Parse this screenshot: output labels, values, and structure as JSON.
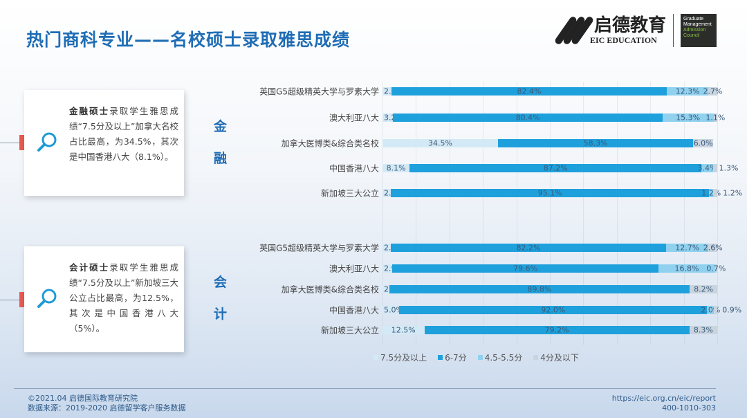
{
  "header": {
    "title": "热门商科专业——名校硕士录取雅思成绩"
  },
  "logo": {
    "cn": "启德教育",
    "en": "EIC EDUCATION",
    "gmac": [
      "Graduate",
      "Management",
      "Admission",
      "Council"
    ]
  },
  "cards": [
    {
      "bold": "金融硕士",
      "text": "录取学生雅思成绩“7.5分及以上”加拿大名校占比最高，为34.5%，其次是中国香港八大（8.1%）。"
    },
    {
      "bold": "会计硕士",
      "text": "录取学生雅思成绩“7.5分及以上”新加坡三大公立占比最高，为12.5%，其次是中国香港八大（5%）。"
    }
  ],
  "chart_data": {
    "type": "bar",
    "stacked": true,
    "orientation": "horizontal",
    "xlim": [
      0,
      100
    ],
    "grid": true,
    "legend_placement": "bottom",
    "legend": [
      "7.5分及以上",
      "6-7分",
      "4.5-5.5分",
      "4分及以下"
    ],
    "colors": [
      "#d4e9f6",
      "#1ea0dc",
      "#8fd1ef",
      "#c9d4df"
    ],
    "groups": [
      {
        "name": "金融",
        "categories": [
          "英国G5超级精英大学与罗素大学",
          "澳大利亚八大",
          "加拿大医博类&综合类名校",
          "中国香港八大",
          "新加坡三大公立"
        ],
        "series": [
          {
            "name": "7.5分及以上",
            "values": [
              2.6,
              3.2,
              34.5,
              8.1,
              2.5
            ]
          },
          {
            "name": "6-7分",
            "values": [
              82.4,
              80.4,
              58.3,
              87.2,
              95.1
            ]
          },
          {
            "name": "4.5-5.5分",
            "values": [
              12.3,
              15.3,
              0,
              3.4,
              1.2
            ]
          },
          {
            "name": "4分及以下",
            "values": [
              2.7,
              1.1,
              6.0,
              1.3,
              1.2
            ]
          }
        ]
      },
      {
        "name": "会计",
        "categories": [
          "英国G5超级精英大学与罗素大学",
          "澳大利亚八大",
          "加拿大医博类&综合类名校",
          "中国香港八大",
          "新加坡三大公立"
        ],
        "series": [
          {
            "name": "7.5分及以上",
            "values": [
              2.5,
              2.9,
              2.0,
              5.0,
              12.5
            ]
          },
          {
            "name": "6-7分",
            "values": [
              82.2,
              79.6,
              89.8,
              92.0,
              79.2
            ]
          },
          {
            "name": "4.5-5.5分",
            "values": [
              12.7,
              16.8,
              0,
              2.0,
              0
            ]
          },
          {
            "name": "4分及以下",
            "values": [
              2.6,
              0.7,
              8.2,
              0.9,
              8.3
            ]
          }
        ]
      }
    ]
  },
  "footer": {
    "copyright": "©2021.04 启德国际教育研究院",
    "source": "数据来源：2019-2020 启德留学客户服务数据",
    "url": "https://eic.org.cn/eic/report",
    "phone": "400-1010-303"
  }
}
